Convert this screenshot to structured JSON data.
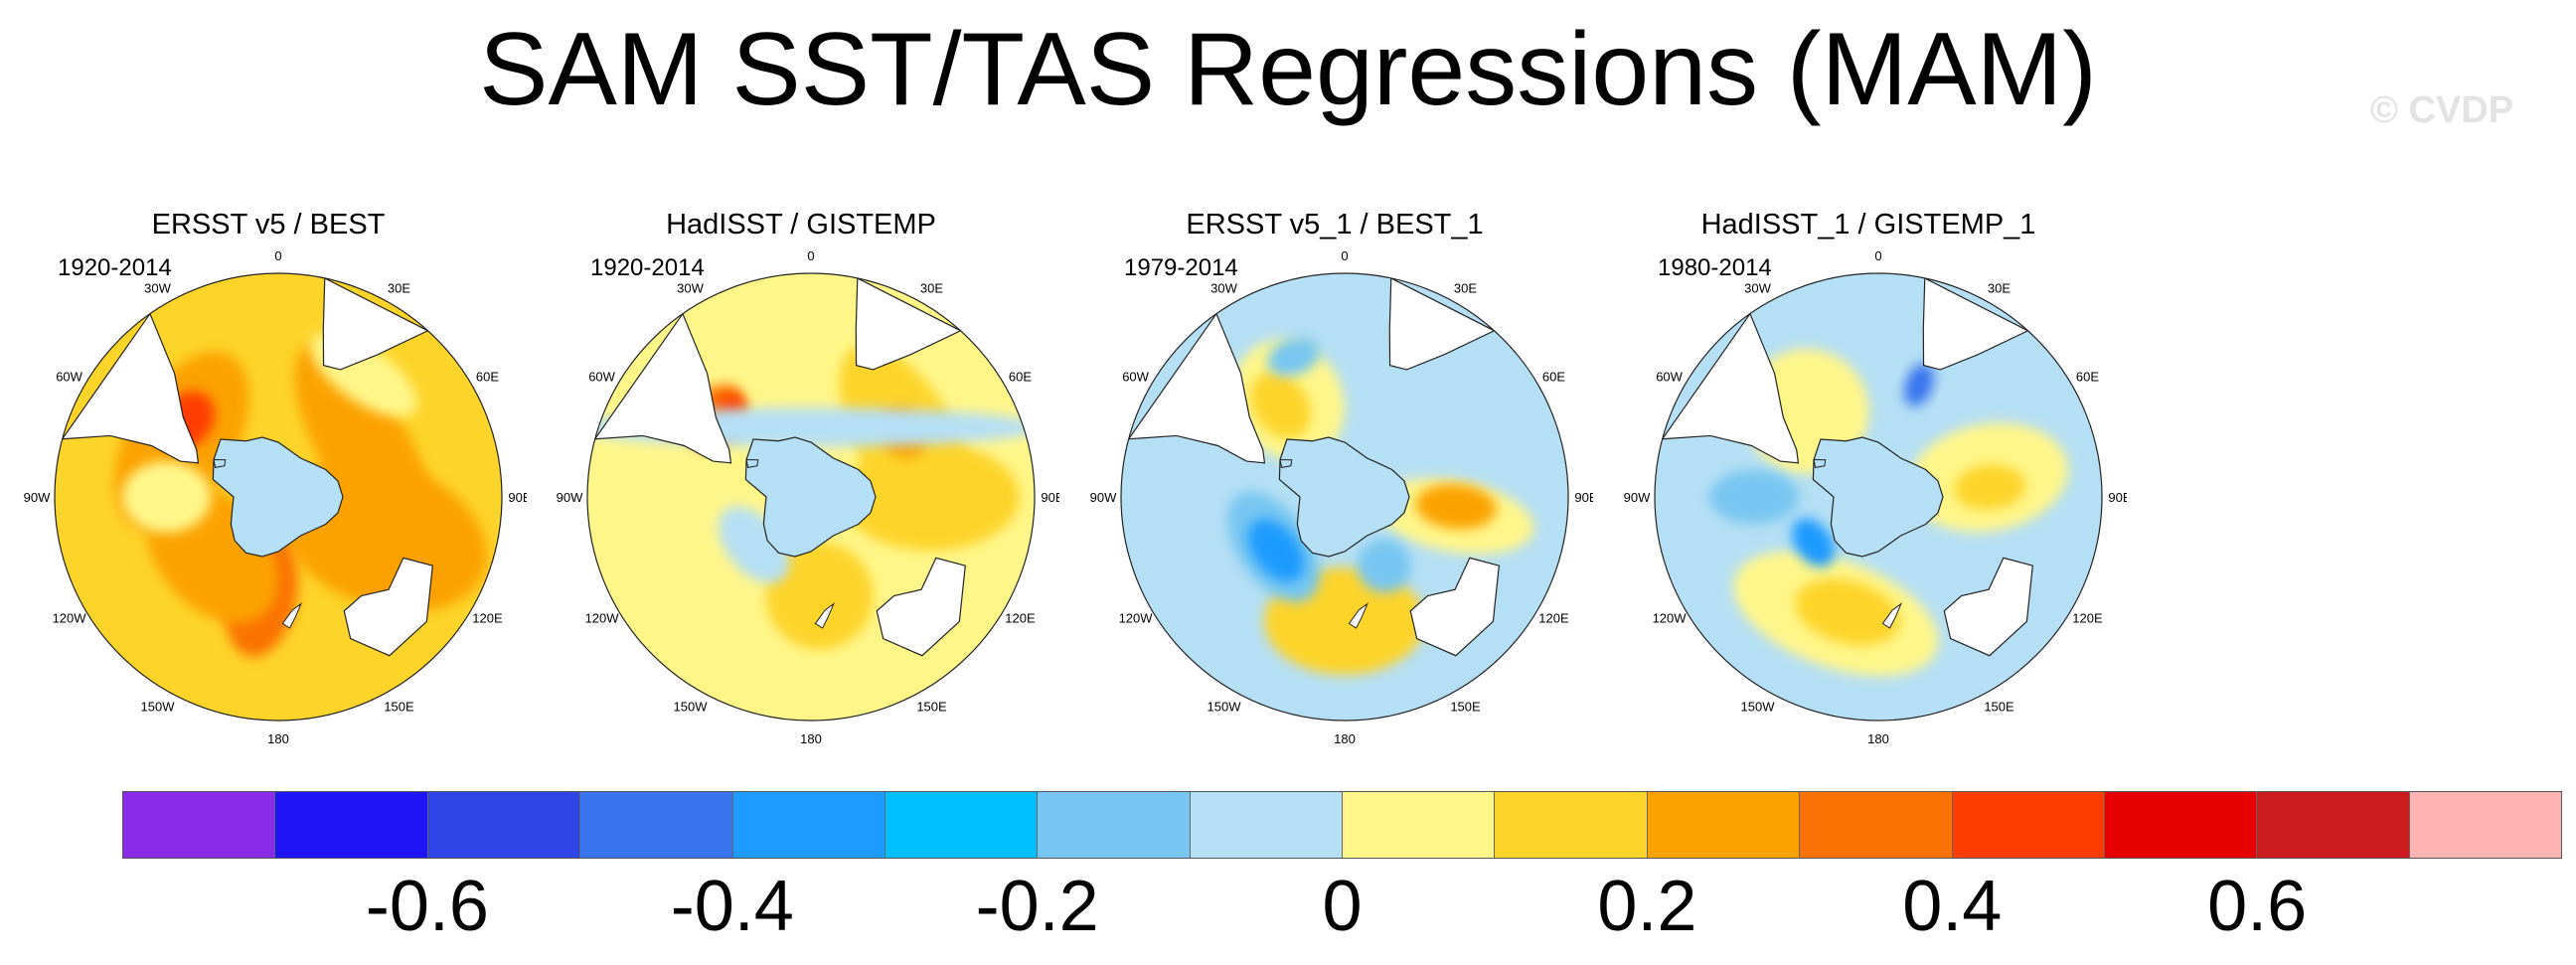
{
  "title": "SAM SST/TAS Regressions (MAM)",
  "watermark": "© CVDP",
  "lon_labels": [
    "0",
    "30E",
    "60E",
    "90E",
    "120E",
    "150E",
    "180",
    "150W",
    "120W",
    "90W",
    "60W",
    "30W"
  ],
  "panels": [
    {
      "title": "ERSST v5 / BEST",
      "years": "1920-2014",
      "base_color": "#fdd42a",
      "blobs": [
        {
          "lon": 300,
          "lat": -45,
          "rx": 110,
          "ry": 60,
          "color": "#fba200"
        },
        {
          "lon": 310,
          "lat": -42,
          "rx": 35,
          "ry": 28,
          "color": "#ff3c00"
        },
        {
          "lon": 60,
          "lat": -50,
          "rx": 130,
          "ry": 50,
          "color": "#fba200"
        },
        {
          "lon": 110,
          "lat": -45,
          "rx": 80,
          "ry": 120,
          "color": "#fba200"
        },
        {
          "lon": 190,
          "lat": -50,
          "rx": 40,
          "ry": 70,
          "color": "#fa7203"
        },
        {
          "lon": 230,
          "lat": -55,
          "rx": 90,
          "ry": 60,
          "color": "#fba200"
        },
        {
          "lon": 35,
          "lat": -30,
          "rx": 70,
          "ry": 30,
          "color": "#fff68a"
        },
        {
          "lon": 270,
          "lat": -45,
          "rx": 40,
          "ry": 50,
          "color": "#fff68a"
        }
      ]
    },
    {
      "title": "HadISST / GISTEMP",
      "years": "1920-2014",
      "base_color": "#fff68a",
      "blobs": [
        {
          "lon": 60,
          "lat": -45,
          "rx": 120,
          "ry": 55,
          "color": "#fdd42a"
        },
        {
          "lon": 90,
          "lat": -42,
          "rx": 60,
          "ry": 100,
          "color": "#fdd42a"
        },
        {
          "lon": 310,
          "lat": -40,
          "rx": 40,
          "ry": 30,
          "color": "#fa7203"
        },
        {
          "lon": 318,
          "lat": -42,
          "rx": 15,
          "ry": 15,
          "color": "#ff3c00"
        },
        {
          "lon": 55,
          "lat": -45,
          "rx": 30,
          "ry": 25,
          "color": "#fba200"
        },
        {
          "lon": 175,
          "lat": -50,
          "rx": 60,
          "ry": 60,
          "color": "#fdd42a"
        },
        {
          "lon": 0,
          "lat": -62,
          "rx": 260,
          "ry": 22,
          "color": "#b5dff4"
        },
        {
          "lon": 230,
          "lat": -60,
          "rx": 50,
          "ry": 30,
          "color": "#b5dff4"
        }
      ]
    },
    {
      "title": "ERSST v5_1 / BEST_1",
      "years": "1979-2014",
      "base_color": "#b5dff4",
      "blobs": [
        {
          "lon": 180,
          "lat": -40,
          "rx": 90,
          "ry": 60,
          "color": "#fdd42a"
        },
        {
          "lon": 100,
          "lat": -45,
          "rx": 40,
          "ry": 90,
          "color": "#fff68a"
        },
        {
          "lon": 95,
          "lat": -45,
          "rx": 25,
          "ry": 45,
          "color": "#fba200"
        },
        {
          "lon": 330,
          "lat": -45,
          "rx": 60,
          "ry": 70,
          "color": "#fff68a"
        },
        {
          "lon": 325,
          "lat": -45,
          "rx": 30,
          "ry": 40,
          "color": "#fdd42a"
        },
        {
          "lon": 235,
          "lat": -55,
          "rx": 70,
          "ry": 40,
          "color": "#77c6f1"
        },
        {
          "lon": 232,
          "lat": -55,
          "rx": 40,
          "ry": 25,
          "color": "#1e9bff"
        },
        {
          "lon": 150,
          "lat": -58,
          "rx": 30,
          "ry": 30,
          "color": "#77c6f1"
        },
        {
          "lon": 340,
          "lat": -30,
          "rx": 30,
          "ry": 20,
          "color": "#77c6f1"
        }
      ]
    },
    {
      "title": "HadISST_1 / GISTEMP_1",
      "years": "1980-2014",
      "base_color": "#b5dff4",
      "blobs": [
        {
          "lon": 200,
          "lat": -40,
          "rx": 120,
          "ry": 60,
          "color": "#fff68a"
        },
        {
          "lon": 195,
          "lat": -42,
          "rx": 60,
          "ry": 35,
          "color": "#fdd42a"
        },
        {
          "lon": 80,
          "lat": -45,
          "rx": 60,
          "ry": 90,
          "color": "#fff68a"
        },
        {
          "lon": 85,
          "lat": -45,
          "rx": 25,
          "ry": 40,
          "color": "#fdd42a"
        },
        {
          "lon": 320,
          "lat": -45,
          "rx": 70,
          "ry": 70,
          "color": "#fff68a"
        },
        {
          "lon": 270,
          "lat": -40,
          "rx": 30,
          "ry": 50,
          "color": "#77c6f1"
        },
        {
          "lon": 235,
          "lat": -58,
          "rx": 30,
          "ry": 20,
          "color": "#1e9bff"
        },
        {
          "lon": 20,
          "lat": -42,
          "rx": 15,
          "ry": 25,
          "color": "#3774ee"
        }
      ]
    }
  ],
  "colorbar": {
    "colors": [
      "#8a2be8",
      "#1e14f5",
      "#2f44e6",
      "#3774ee",
      "#1e9bff",
      "#00c0ff",
      "#77c6f1",
      "#b5dff4",
      "#fff68a",
      "#fdd42a",
      "#fba200",
      "#fa7203",
      "#ff3c00",
      "#e60000",
      "#cb1b1e",
      "#ffb3b3"
    ],
    "labels": [
      "-0.6",
      "-0.4",
      "-0.2",
      "0",
      "0.2",
      "0.4",
      "0.6"
    ]
  }
}
